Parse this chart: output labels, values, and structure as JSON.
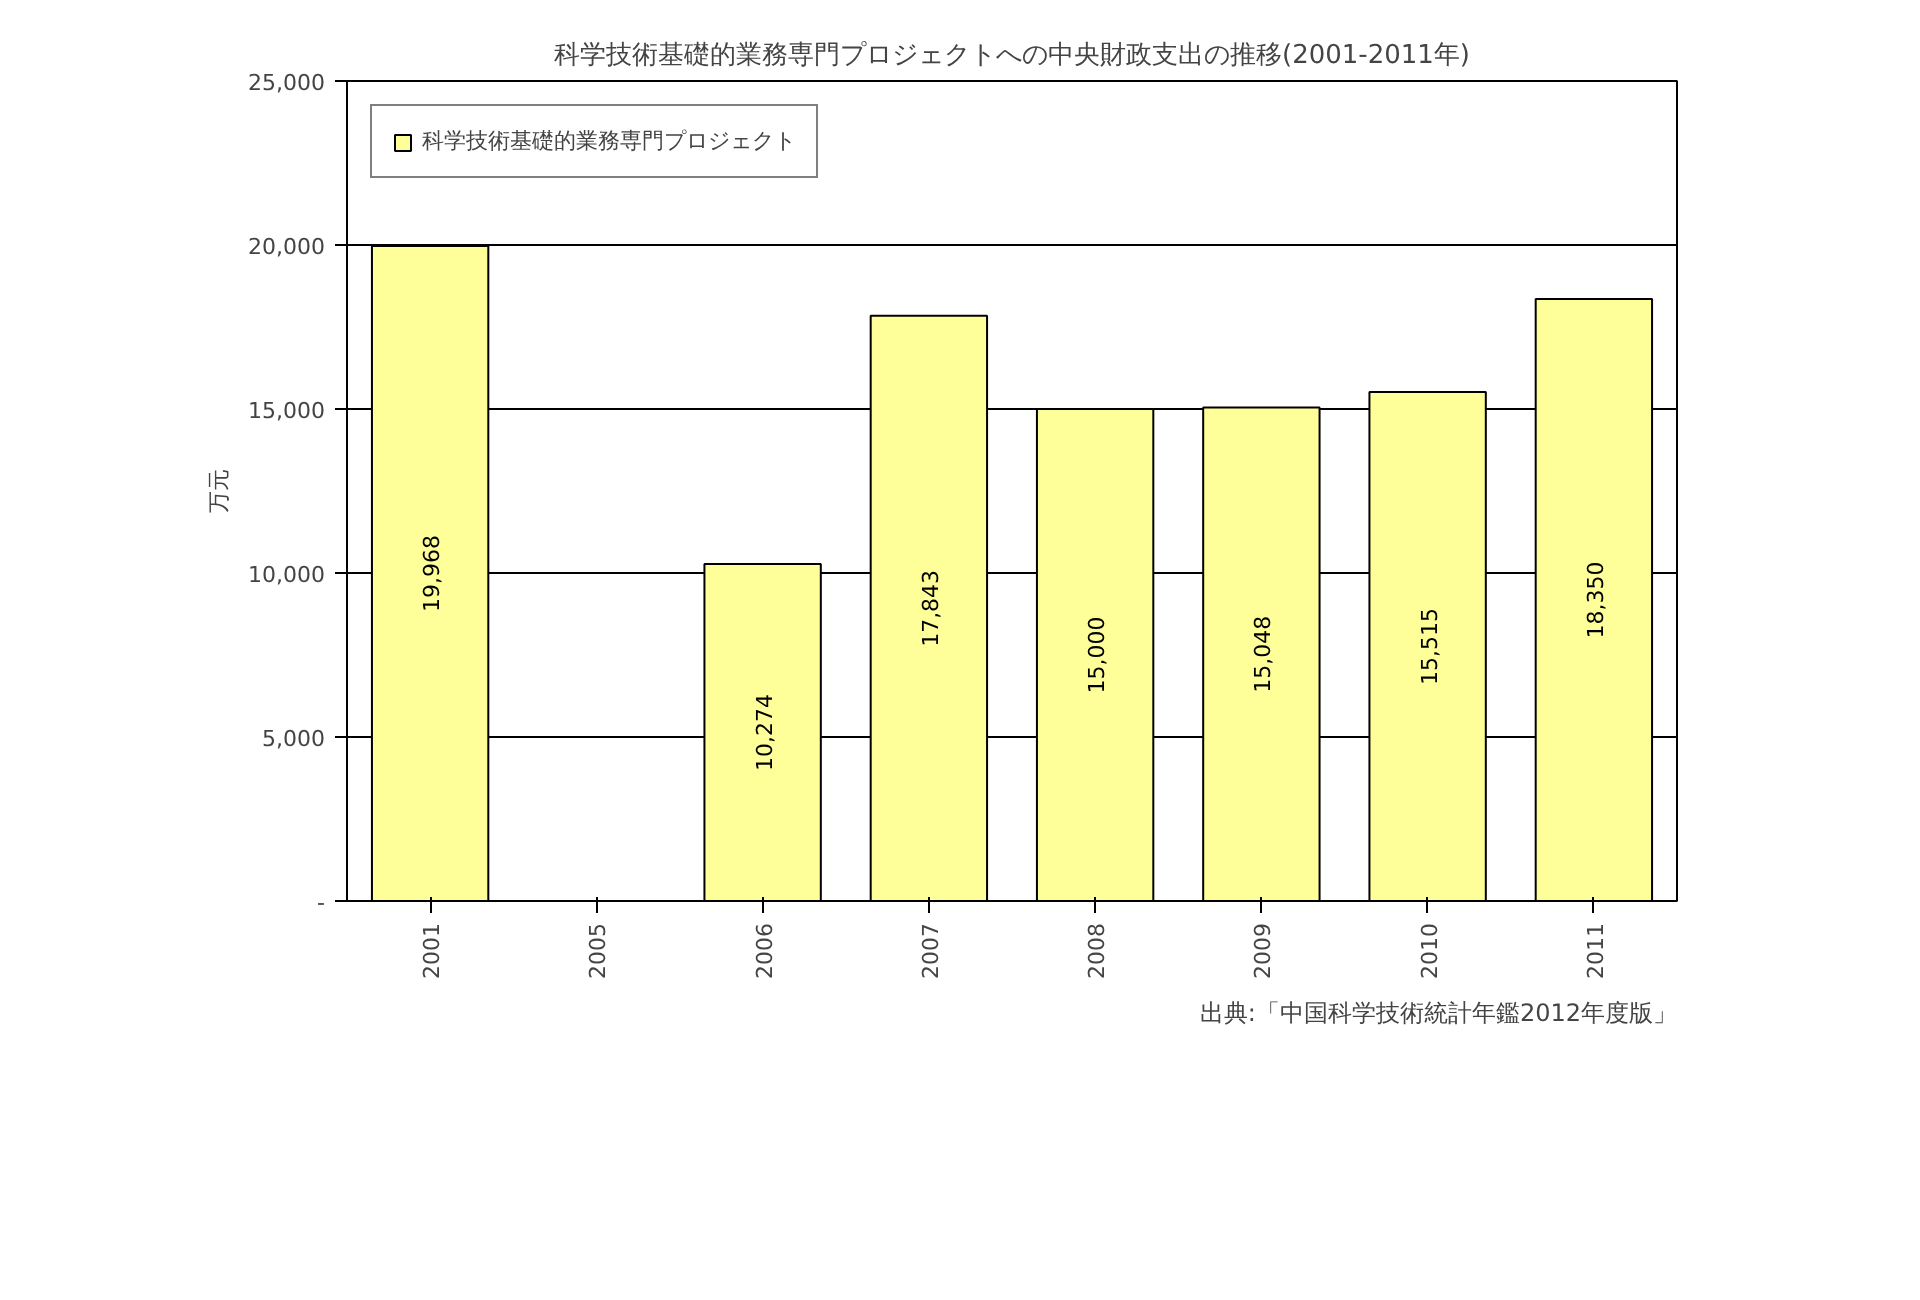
{
  "chart_data": {
    "type": "bar",
    "title": "科学技術基礎的業務専門プロジェクトへの中央財政支出の推移(2001-2011年)",
    "ylabel": "万元",
    "annotations": [
      "出典:「中国科学技術統計年鑑2012年度版」"
    ],
    "categories": [
      "2001",
      "2005",
      "2006",
      "2007",
      "2008",
      "2009",
      "2010",
      "2011"
    ],
    "series": [
      {
        "name": "科学技術基礎的業務専門プロジェクト",
        "color": "#ffff99",
        "values": [
          19968,
          null,
          10274,
          17843,
          15000,
          15048,
          15515,
          18350
        ],
        "value_labels": [
          "19,968",
          null,
          "10,274",
          "17,843",
          "15,000",
          "15,048",
          "15,515",
          "18,350"
        ]
      }
    ],
    "ylim": [
      0,
      25000
    ],
    "yticks": [
      {
        "value": 0,
        "label": "-"
      },
      {
        "value": 5000,
        "label": "5,000"
      },
      {
        "value": 10000,
        "label": "10,000"
      },
      {
        "value": 15000,
        "label": "15,000"
      },
      {
        "value": 20000,
        "label": "20,000"
      },
      {
        "value": 25000,
        "label": "25,000"
      }
    ],
    "grid": "y",
    "legend": "top left"
  }
}
